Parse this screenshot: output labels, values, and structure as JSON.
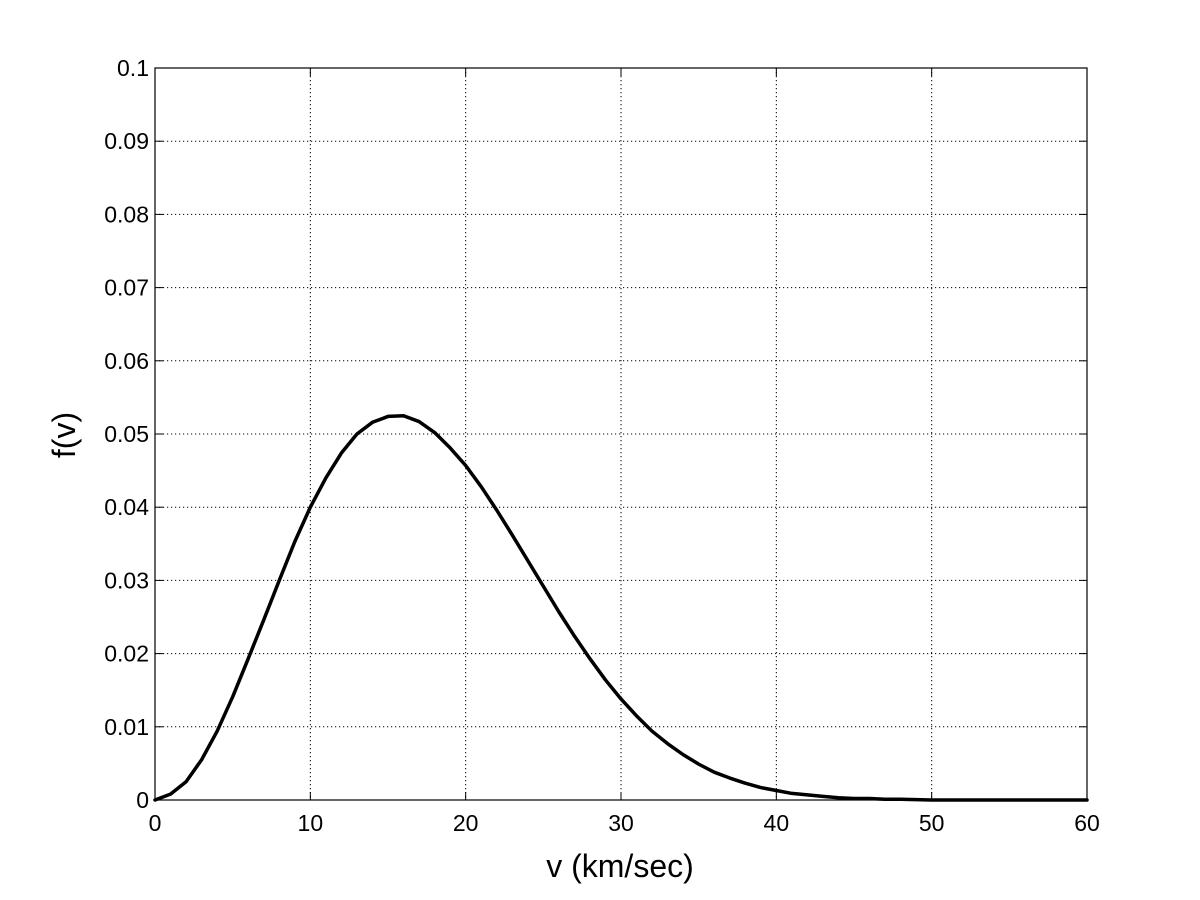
{
  "chart_data": {
    "type": "line",
    "title": "",
    "xlabel": "v (km/sec)",
    "ylabel": "f(v)",
    "xlim": [
      0,
      60
    ],
    "ylim": [
      0,
      0.1
    ],
    "xticks": [
      0,
      10,
      20,
      30,
      40,
      50,
      60
    ],
    "xtick_labels": [
      "0",
      "10",
      "20",
      "30",
      "40",
      "50",
      "60"
    ],
    "yticks": [
      0,
      0.01,
      0.02,
      0.03,
      0.04,
      0.05,
      0.06,
      0.07,
      0.08,
      0.09,
      0.1
    ],
    "ytick_labels": [
      "0",
      "0.01",
      "0.02",
      "0.03",
      "0.04",
      "0.05",
      "0.06",
      "0.07",
      "0.08",
      "0.09",
      "0.1"
    ],
    "grid": true,
    "grid_style": "dotted",
    "series": [
      {
        "color": "#000000",
        "x": [
          0,
          1,
          2,
          3,
          4,
          5,
          6,
          7,
          8,
          9,
          10,
          11,
          12,
          13,
          14,
          15,
          16,
          17,
          18,
          19,
          20,
          21,
          22,
          23,
          24,
          25,
          26,
          27,
          28,
          29,
          30,
          31,
          32,
          33,
          34,
          35,
          36,
          37,
          38,
          39,
          40,
          41,
          42,
          43,
          44,
          45,
          46,
          47,
          48,
          50,
          55,
          60
        ],
        "y": [
          0,
          0.0008,
          0.0025,
          0.0055,
          0.0094,
          0.0141,
          0.0193,
          0.0246,
          0.03,
          0.0353,
          0.04,
          0.044,
          0.0474,
          0.05,
          0.0516,
          0.0524,
          0.0525,
          0.0517,
          0.0502,
          0.0481,
          0.0457,
          0.0428,
          0.0396,
          0.0362,
          0.0327,
          0.0292,
          0.0257,
          0.0224,
          0.0193,
          0.0164,
          0.0138,
          0.0115,
          0.0094,
          0.0077,
          0.0062,
          0.0049,
          0.0038,
          0.003,
          0.0023,
          0.0017,
          0.0013,
          0.0009,
          0.0007,
          0.0005,
          0.0003,
          0.0002,
          0.0002,
          0.0001,
          0.0001,
          0,
          0,
          0
        ]
      }
    ]
  }
}
